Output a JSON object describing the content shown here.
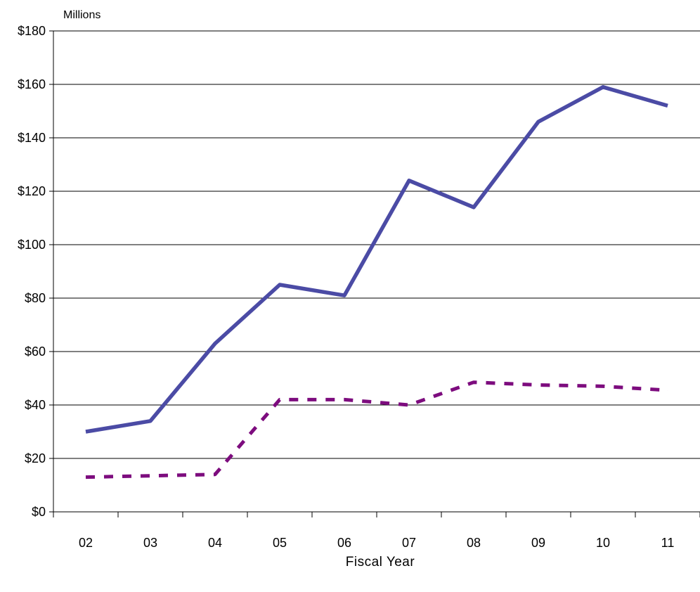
{
  "chart_data": {
    "type": "line",
    "title": "",
    "xlabel": "Fiscal Year",
    "ylabel": "",
    "y_unit_label": "Millions",
    "y_tick_prefix": "$",
    "categories": [
      "02",
      "03",
      "04",
      "05",
      "06",
      "07",
      "08",
      "09",
      "10",
      "11"
    ],
    "y_ticks": [
      0,
      20,
      40,
      60,
      80,
      100,
      120,
      140,
      160,
      180
    ],
    "ylim": [
      0,
      180
    ],
    "grid": "horizontal",
    "legend": "none",
    "series": [
      {
        "values": [
          30,
          34,
          63,
          85,
          81,
          124,
          114,
          146,
          159,
          152
        ],
        "color": "#4B4BA5",
        "style": "solid"
      },
      {
        "values": [
          13,
          13.5,
          14,
          42,
          42,
          40,
          48.5,
          47.5,
          47,
          45.5
        ],
        "color": "#7D0C7E",
        "style": "dashed"
      }
    ]
  }
}
